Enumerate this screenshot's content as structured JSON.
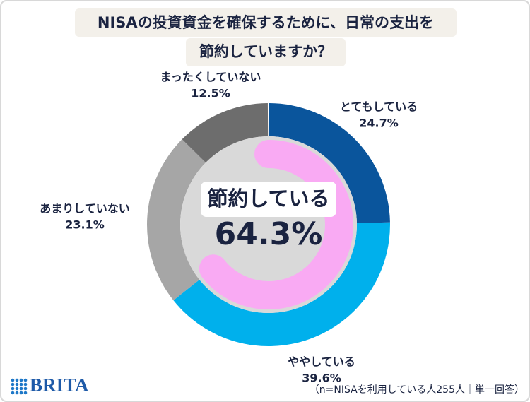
{
  "chart_data": {
    "type": "donut",
    "title": [
      "NISAの投資資金を確保するために、日常の支出を",
      "節約していますか？"
    ],
    "categories": [
      "とてもしている",
      "ややしている",
      "あまりしていない",
      "まったくしていない"
    ],
    "values": [
      24.7,
      39.6,
      23.1,
      12.5
    ],
    "value_labels": [
      "24.7%",
      "39.6%",
      "23.1%",
      "12.5%"
    ],
    "colors": [
      "#0a559c",
      "#00b0ec",
      "#a6a6a6",
      "#6d6d6d"
    ],
    "center": {
      "label": "節約している",
      "value": 64.3,
      "value_label": "64.3%",
      "color": "#f9aaf3"
    },
    "note": "（n=NISAを利用している人255人｜単一回答）",
    "logo": "BRITA"
  }
}
